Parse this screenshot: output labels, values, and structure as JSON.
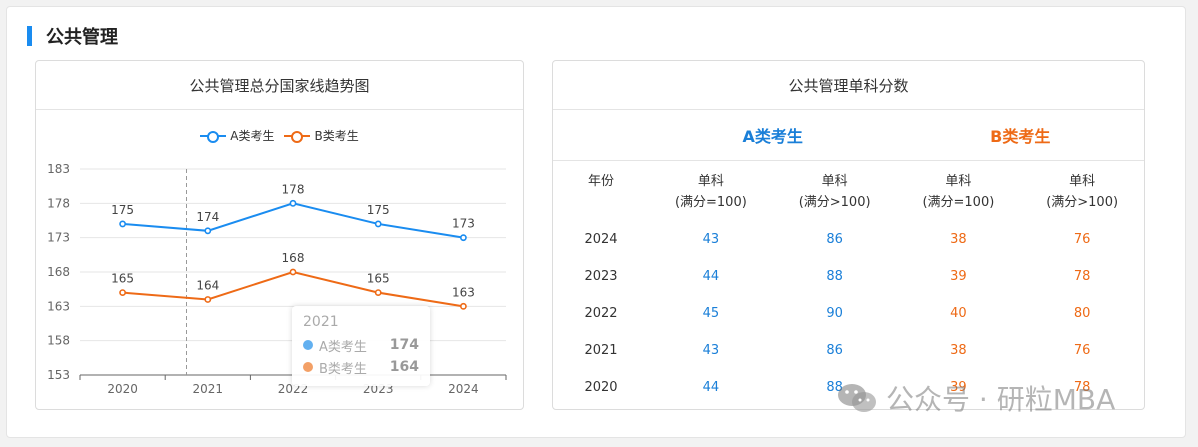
{
  "section": {
    "title": "公共管理"
  },
  "trend_card": {
    "title": "公共管理总分国家线趋势图"
  },
  "scores_card": {
    "title": "公共管理单科分数",
    "group_a": "A类考生",
    "group_b": "B类考生",
    "headers": [
      "年份",
      "单科\n(满分=100)",
      "单科\n(满分>100)",
      "单科\n(满分=100)",
      "单科\n(满分>100)"
    ],
    "rows": [
      {
        "year": "2024",
        "a100": "43",
        "a_over": "86",
        "b100": "38",
        "b_over": "76"
      },
      {
        "year": "2023",
        "a100": "44",
        "a_over": "88",
        "b100": "39",
        "b_over": "78"
      },
      {
        "year": "2022",
        "a100": "45",
        "a_over": "90",
        "b100": "40",
        "b_over": "80"
      },
      {
        "year": "2021",
        "a100": "43",
        "a_over": "86",
        "b100": "38",
        "b_over": "76"
      },
      {
        "year": "2020",
        "a100": "44",
        "a_over": "88",
        "b100": "39",
        "b_over": "78"
      }
    ]
  },
  "tooltip": {
    "title": "2021",
    "rows": [
      {
        "name": "A类考生",
        "value": "174"
      },
      {
        "name": "B类考生",
        "value": "164"
      }
    ]
  },
  "watermark": {
    "text": "公众号 · 研粒MBA"
  },
  "colors": {
    "accent": "#1a8cf0",
    "series_a": "#1a8cf0",
    "series_b": "#ee6a16",
    "tt_a": "#62b0f0",
    "tt_b": "#f3a066"
  },
  "chart_data": {
    "type": "line",
    "title": "公共管理总分国家线趋势图",
    "categories": [
      "2020",
      "2021",
      "2022",
      "2023",
      "2024"
    ],
    "series": [
      {
        "name": "A类考生",
        "values": [
          175,
          174,
          178,
          175,
          173
        ]
      },
      {
        "name": "B类考生",
        "values": [
          165,
          164,
          168,
          165,
          163
        ]
      }
    ],
    "yticks": [
      153,
      158,
      163,
      168,
      173,
      178,
      183
    ],
    "ylim": [
      153,
      183
    ],
    "xlabel": "",
    "ylabel": "",
    "legend": "top-center",
    "highlight_category": "2021"
  }
}
